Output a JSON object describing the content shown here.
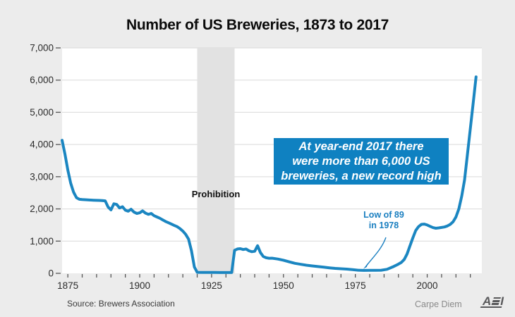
{
  "title": "Number of US Breweries, 1873 to 2017",
  "source_note": "Source: Brewers Association",
  "brand": "Carpe Diem",
  "logo_text": "AEI",
  "colors": {
    "page_background": "#ececec",
    "plot_background": "#ffffff",
    "gridline": "#d9d9d9",
    "tick": "#555555",
    "tick_label": "#2b2b2b",
    "line": "#1b86c1",
    "callout_background": "#0f81c1",
    "callout_text": "#ffffff",
    "low_annotation_text": "#1a7fc0",
    "prohibition_band": "#e2e2e2",
    "logo_gray": "#59595b"
  },
  "annotations": {
    "prohibition_label": "Prohibition",
    "callout_lines": [
      "At year-end 2017 there",
      "were more than 6,000 US",
      "breweries, a new record high"
    ],
    "low_lines": [
      "Low of 89",
      "in 1978"
    ],
    "low_point": {
      "year": 1978,
      "value": 89
    }
  },
  "chart_data": {
    "type": "line",
    "title": "Number of US Breweries, 1873 to 2017",
    "xlabel": "",
    "ylabel": "",
    "xlim": [
      1873,
      2019
    ],
    "ylim": [
      0,
      7000
    ],
    "grid": true,
    "y_ticks": [
      0,
      1000,
      2000,
      3000,
      4000,
      5000,
      6000,
      7000
    ],
    "y_tick_labels": [
      "0",
      "1,000",
      "2,000",
      "3,000",
      "4,000",
      "5,000",
      "6,000",
      "7,000"
    ],
    "x_major_ticks": [
      1875,
      1900,
      1925,
      1950,
      1975,
      2000
    ],
    "x_minor_tick_start": 1875,
    "x_minor_tick_end": 2015,
    "x_minor_tick_step": 5,
    "shaded_region": {
      "label": "Prohibition",
      "x0": 1920,
      "x1": 1933
    },
    "series": [
      {
        "name": "US breweries",
        "x": [
          1873,
          1874,
          1875,
          1876,
          1877,
          1878,
          1879,
          1880,
          1882,
          1884,
          1886,
          1887,
          1888,
          1889,
          1890,
          1891,
          1892,
          1893,
          1894,
          1895,
          1896,
          1897,
          1898,
          1899,
          1900,
          1901,
          1902,
          1903,
          1904,
          1905,
          1906,
          1907,
          1908,
          1909,
          1910,
          1911,
          1912,
          1913,
          1914,
          1915,
          1916,
          1917,
          1918,
          1919,
          1920,
          1922,
          1924,
          1926,
          1928,
          1930,
          1932,
          1933,
          1934,
          1935,
          1936,
          1937,
          1938,
          1939,
          1940,
          1941,
          1942,
          1943,
          1944,
          1945,
          1946,
          1948,
          1950,
          1952,
          1954,
          1956,
          1958,
          1960,
          1962,
          1964,
          1966,
          1968,
          1970,
          1972,
          1974,
          1976,
          1978,
          1980,
          1982,
          1984,
          1986,
          1988,
          1990,
          1991,
          1992,
          1993,
          1994,
          1995,
          1996,
          1997,
          1998,
          1999,
          2000,
          2001,
          2002,
          2003,
          2004,
          2005,
          2006,
          2007,
          2008,
          2009,
          2010,
          2011,
          2012,
          2013,
          2014,
          2015,
          2016,
          2017
        ],
        "values": [
          4131,
          3700,
          3200,
          2800,
          2520,
          2350,
          2300,
          2290,
          2280,
          2270,
          2265,
          2260,
          2250,
          2060,
          1970,
          2160,
          2140,
          2030,
          2070,
          1960,
          1930,
          1990,
          1900,
          1860,
          1880,
          1940,
          1870,
          1830,
          1860,
          1790,
          1750,
          1710,
          1660,
          1610,
          1570,
          1530,
          1490,
          1450,
          1390,
          1310,
          1210,
          1060,
          700,
          200,
          30,
          27,
          26,
          26,
          25,
          25,
          25,
          715,
          756,
          766,
          739,
          754,
          700,
          672,
          684,
          857,
          640,
          520,
          483,
          468,
          471,
          445,
          407,
          357,
          310,
          281,
          252,
          229,
          211,
          190,
          170,
          153,
          142,
          131,
          114,
          97,
          89,
          92,
          93,
          97,
          124,
          199,
          286,
          340,
          430,
          600,
          850,
          1100,
          1330,
          1450,
          1520,
          1530,
          1500,
          1460,
          1420,
          1400,
          1410,
          1425,
          1440,
          1470,
          1520,
          1600,
          1750,
          2000,
          2400,
          2900,
          3700,
          4500,
          5300,
          6100
        ]
      }
    ]
  }
}
